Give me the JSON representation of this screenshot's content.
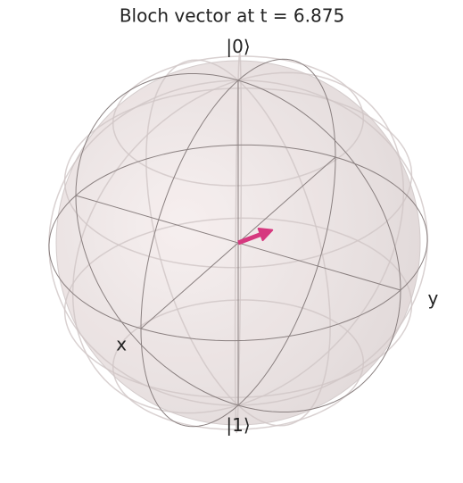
{
  "chart_data": {
    "type": "bloch",
    "title": "Bloch vector at t = 6.875",
    "labels": {
      "z_plus": "|0⟩",
      "z_minus": "|1⟩",
      "x": "x",
      "y": "y"
    },
    "vector": {
      "x": 0,
      "y": 0.21,
      "z": 0.14
    },
    "vector_color": "#d6397f",
    "sphere_color": "#f2e4e4",
    "frame_color": "#8a8080",
    "grid_color": "#cfc6c6"
  }
}
